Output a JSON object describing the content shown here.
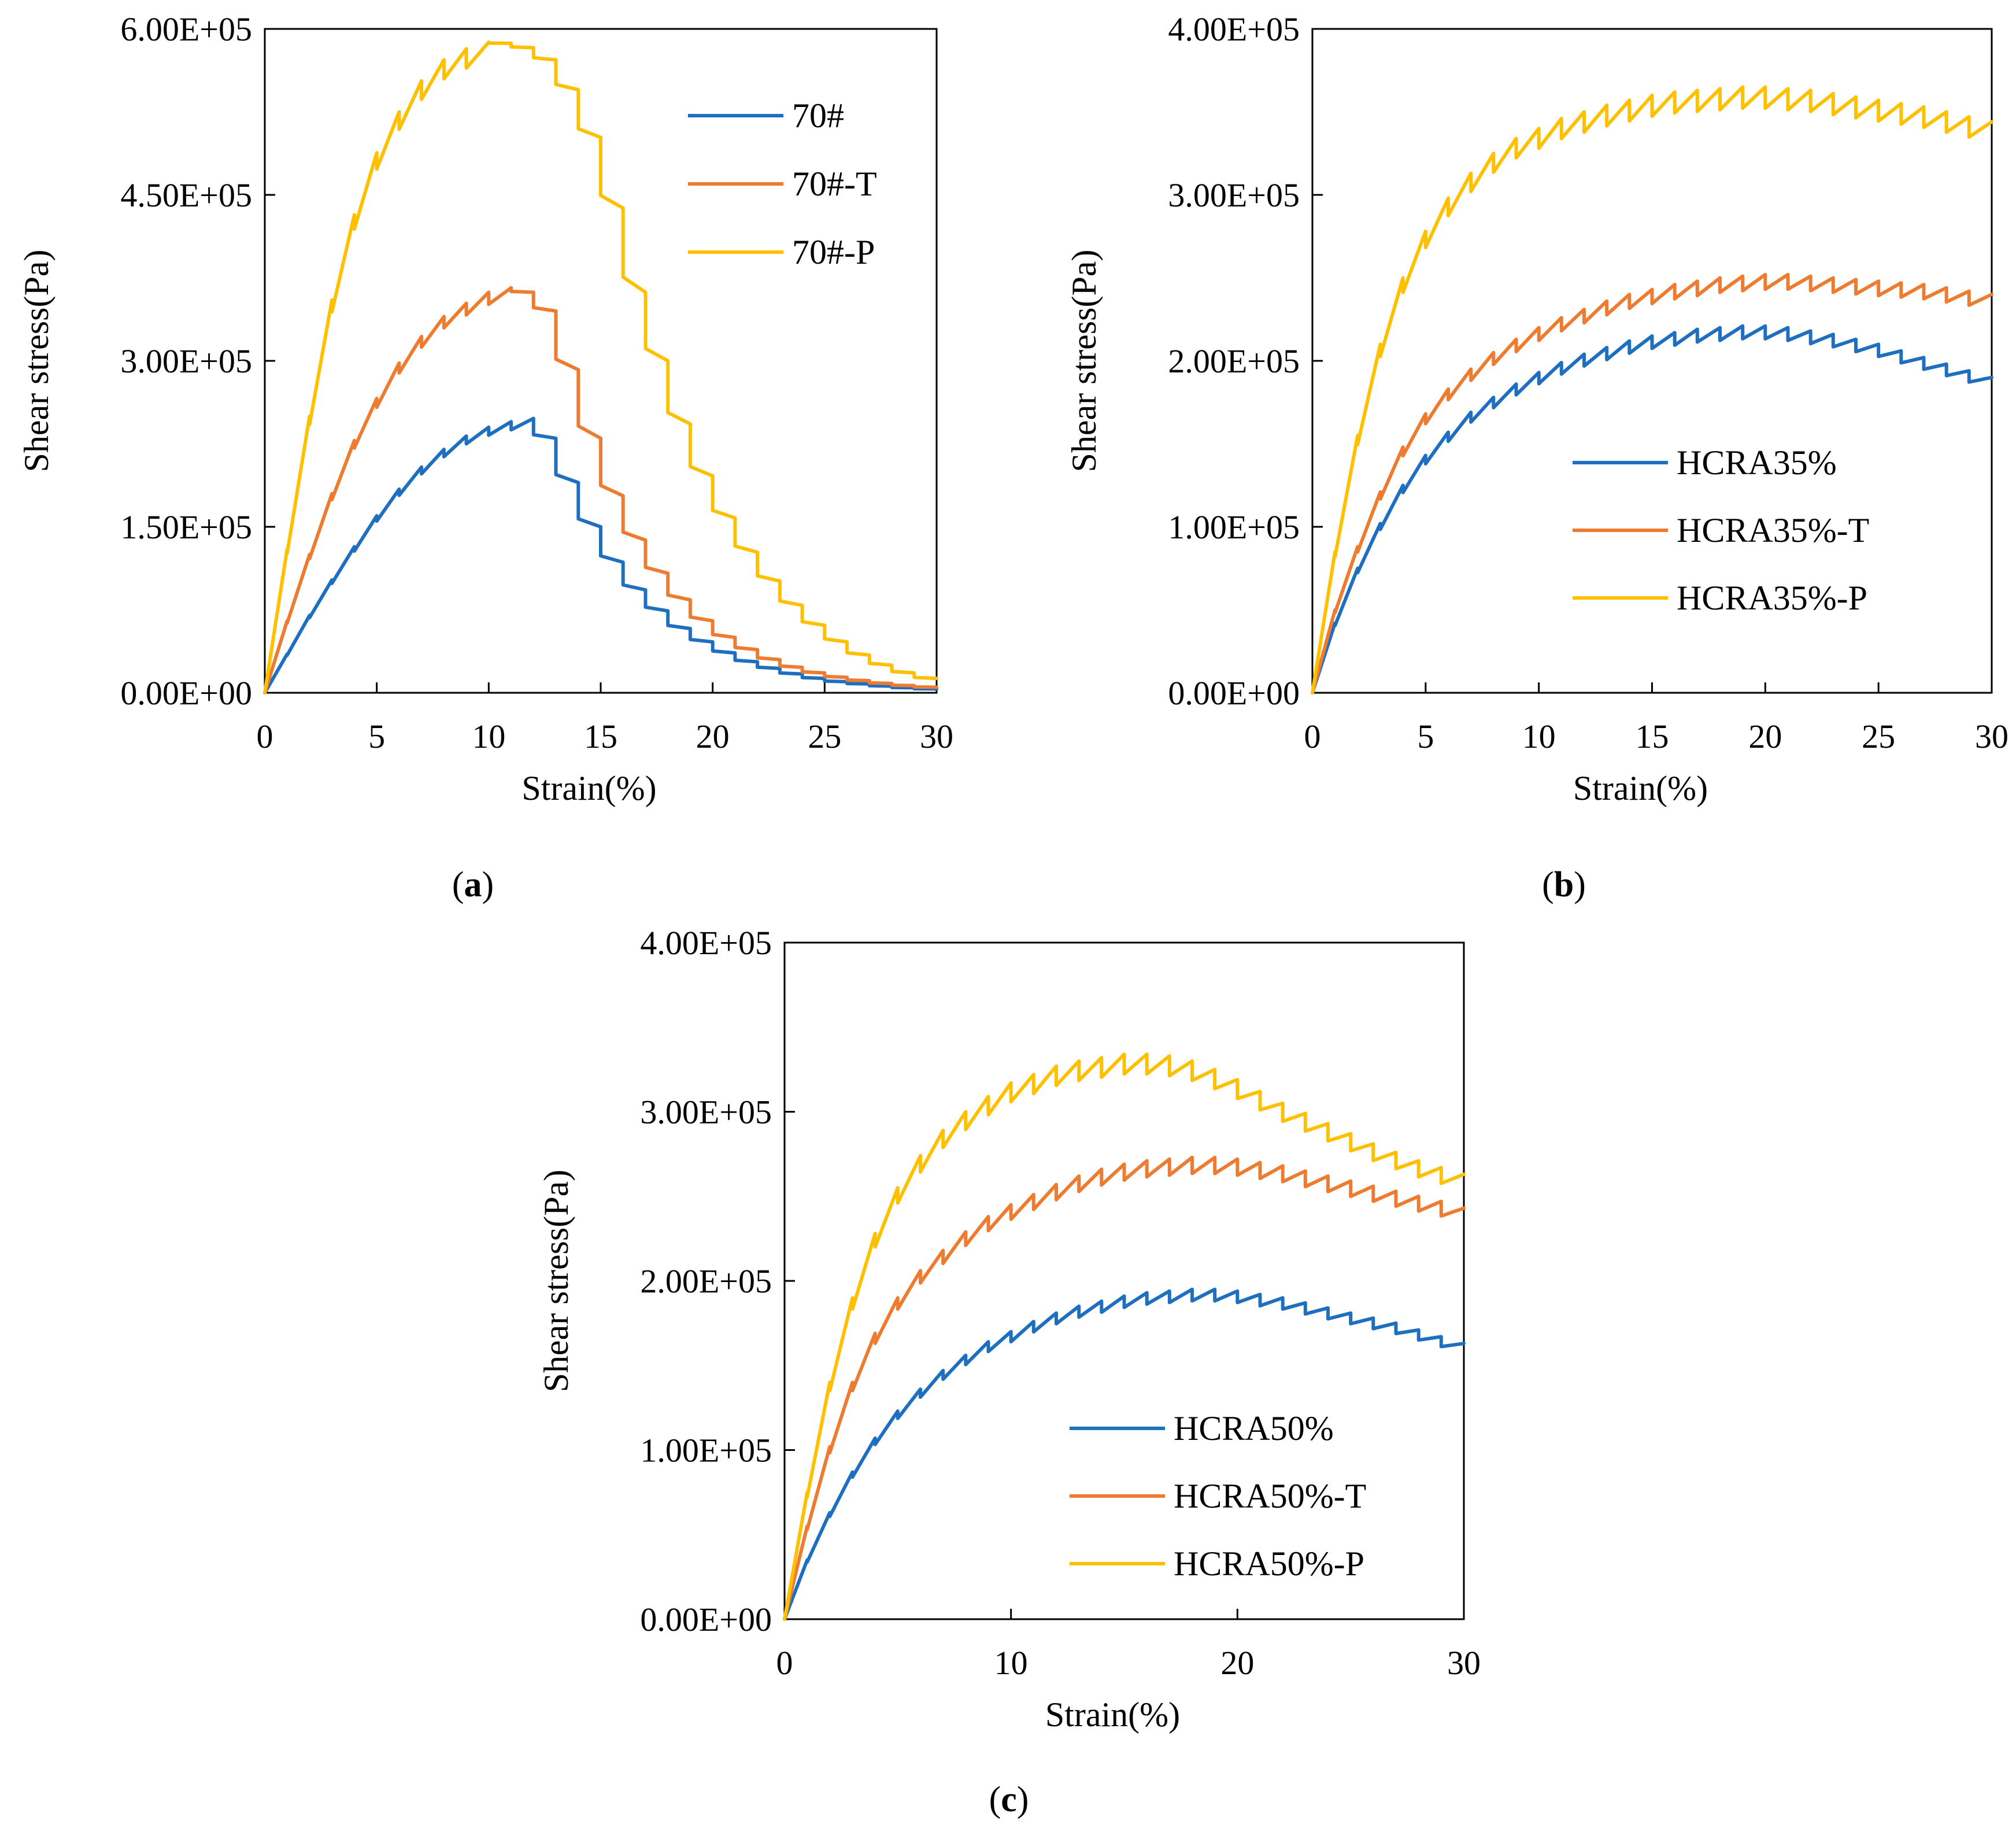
{
  "colors": {
    "blue": "#1F6FC0",
    "orange": "#EE7C30",
    "yellow": "#FFC000",
    "axis": "#000000"
  },
  "chart_data": [
    {
      "id": "a",
      "type": "line",
      "caption": {
        "open": "(",
        "letter": "a",
        "close": ")"
      },
      "xlabel": "Strain(%)",
      "ylabel": "Shear stress(Pa)",
      "xlim": [
        0,
        30
      ],
      "ylim": [
        0,
        600000
      ],
      "xticks": [
        0,
        5,
        10,
        15,
        20,
        25,
        30
      ],
      "xtick_labels": [
        "0",
        "5",
        "10",
        "15",
        "20",
        "25",
        "30"
      ],
      "yticks": [
        0,
        150000,
        300000,
        450000,
        600000
      ],
      "ytick_labels": [
        "0.00E+00",
        "1.50E+05",
        "3.00E+05",
        "4.50E+05",
        "6.00E+05"
      ],
      "legend_position": "top-right",
      "series": [
        {
          "name": "70#",
          "color": "blue",
          "model": "peak",
          "x": [
            0,
            1,
            2,
            3,
            4,
            5,
            6,
            7,
            8,
            9,
            10,
            11,
            12,
            13,
            14,
            15,
            16,
            17,
            18,
            19,
            20,
            21,
            22,
            23,
            24,
            25,
            26,
            27,
            28,
            29,
            30
          ],
          "y": [
            0,
            35000,
            70000,
            102000,
            132000,
            160000,
            184000,
            204000,
            220000,
            232000,
            240000,
            245000,
            248000,
            230000,
            190000,
            150000,
            118000,
            93000,
            74000,
            58000,
            46000,
            36000,
            28000,
            22000,
            17000,
            13000,
            10000,
            8000,
            6000,
            4500,
            3500
          ]
        },
        {
          "name": "70#-T",
          "color": "orange",
          "model": "peak",
          "x": [
            0,
            1,
            2,
            3,
            4,
            5,
            6,
            7,
            8,
            9,
            10,
            11,
            12,
            13,
            14,
            15,
            16,
            17,
            18,
            19,
            20,
            21,
            22,
            23,
            24,
            25,
            26,
            27,
            28,
            29,
            30
          ],
          "y": [
            0,
            65000,
            125000,
            180000,
            228000,
            266000,
            298000,
            322000,
            340000,
            352000,
            362000,
            366000,
            362000,
            345000,
            292000,
            230000,
            178000,
            138000,
            108000,
            84000,
            65000,
            50000,
            39000,
            30000,
            23000,
            18000,
            14000,
            11000,
            8500,
            6500,
            5000
          ]
        },
        {
          "name": "70#-P",
          "color": "yellow",
          "model": "peak",
          "x": [
            0,
            1,
            2,
            3,
            4,
            5,
            6,
            7,
            8,
            9,
            10,
            11,
            12,
            13,
            14,
            15,
            16,
            17,
            18,
            19,
            20,
            21,
            22,
            23,
            24,
            25,
            26,
            27,
            28,
            29,
            30
          ],
          "y": [
            0,
            130000,
            250000,
            355000,
            432000,
            488000,
            525000,
            553000,
            572000,
            582000,
            588000,
            587000,
            583000,
            572000,
            545000,
            502000,
            438000,
            362000,
            300000,
            243000,
            196000,
            158000,
            127000,
            101000,
            79000,
            61000,
            46000,
            34000,
            25000,
            18000,
            13000
          ]
        }
      ]
    },
    {
      "id": "b",
      "type": "line",
      "caption": {
        "open": "(",
        "letter": "b",
        "close": ")"
      },
      "xlabel": "Strain(%)",
      "ylabel": "Shear stress(Pa)",
      "xlim": [
        0,
        30
      ],
      "ylim": [
        0,
        400000
      ],
      "xticks": [
        0,
        5,
        10,
        15,
        20,
        25,
        30
      ],
      "xtick_labels": [
        "0",
        "5",
        "10",
        "15",
        "20",
        "25",
        "30"
      ],
      "yticks": [
        0,
        100000,
        200000,
        300000,
        400000
      ],
      "ytick_labels": [
        "0.00E+00",
        "1.00E+05",
        "2.00E+05",
        "3.00E+05",
        "4.00E+05"
      ],
      "legend_position": "bottom-right",
      "series": [
        {
          "name": "HCRA35%",
          "color": "blue",
          "model": "plateau",
          "x": [
            0,
            1,
            2,
            3,
            4,
            5,
            6,
            7,
            8,
            9,
            10,
            11,
            12,
            13,
            14,
            15,
            16,
            17,
            18,
            19,
            20,
            21,
            22,
            23,
            24,
            25,
            26,
            27,
            28,
            29,
            30
          ],
          "y": [
            0,
            42000,
            75000,
            102000,
            125000,
            143000,
            157000,
            169000,
            178000,
            186000,
            193000,
            199000,
            204000,
            208000,
            212000,
            215000,
            217000,
            219000,
            220000,
            221000,
            221000,
            220000,
            218000,
            216000,
            213000,
            210000,
            206000,
            202000,
            198000,
            194000,
            190000
          ]
        },
        {
          "name": "HCRA35%-T",
          "color": "orange",
          "model": "plateau",
          "x": [
            0,
            1,
            2,
            3,
            4,
            5,
            6,
            7,
            8,
            9,
            10,
            11,
            12,
            13,
            14,
            15,
            16,
            17,
            18,
            19,
            20,
            21,
            22,
            23,
            24,
            25,
            26,
            27,
            28,
            29,
            30
          ],
          "y": [
            0,
            50000,
            88000,
            121000,
            148000,
            168000,
            183000,
            195000,
            205000,
            213000,
            220000,
            226000,
            231000,
            236000,
            240000,
            243000,
            246000,
            248000,
            250000,
            251000,
            252000,
            252000,
            251000,
            250000,
            249000,
            248000,
            247000,
            246000,
            244000,
            242000,
            240000
          ]
        },
        {
          "name": "HCRA35%-P",
          "color": "yellow",
          "model": "plateau",
          "x": [
            0,
            1,
            2,
            3,
            4,
            5,
            6,
            7,
            8,
            9,
            10,
            11,
            12,
            13,
            14,
            15,
            16,
            17,
            18,
            19,
            20,
            21,
            22,
            23,
            24,
            25,
            26,
            27,
            28,
            29,
            30
          ],
          "y": [
            0,
            85000,
            155000,
            210000,
            250000,
            278000,
            298000,
            313000,
            325000,
            334000,
            340000,
            346000,
            350000,
            354000,
            357000,
            360000,
            362000,
            363000,
            364000,
            365000,
            365000,
            364000,
            363000,
            361000,
            359000,
            357000,
            355000,
            353000,
            350000,
            347000,
            344000
          ]
        }
      ]
    },
    {
      "id": "c",
      "type": "line",
      "caption": {
        "open": "(",
        "letter": "c",
        "close": ")"
      },
      "xlabel": "Strain(%)",
      "ylabel": "Shear stress(Pa)",
      "xlim": [
        0,
        30
      ],
      "ylim": [
        0,
        400000
      ],
      "xticks": [
        0,
        10,
        20,
        30
      ],
      "xtick_labels": [
        "0",
        "10",
        "20",
        "30"
      ],
      "yticks": [
        0,
        100000,
        200000,
        300000,
        400000
      ],
      "ytick_labels": [
        "0.00E+00",
        "1.00E+05",
        "2.00E+05",
        "3.00E+05",
        "4.00E+05"
      ],
      "legend_position": "bottom-right",
      "series": [
        {
          "name": "HCRA50%",
          "color": "blue",
          "model": "plateau",
          "x": [
            0,
            1,
            2,
            3,
            4,
            5,
            6,
            7,
            8,
            9,
            10,
            11,
            12,
            13,
            14,
            15,
            16,
            17,
            18,
            19,
            20,
            21,
            22,
            23,
            24,
            25,
            26,
            27,
            28,
            29,
            30
          ],
          "y": [
            0,
            35000,
            63000,
            87000,
            107000,
            123000,
            136000,
            147000,
            156000,
            164000,
            170000,
            176000,
            181000,
            185000,
            188000,
            191000,
            193000,
            194000,
            195000,
            195000,
            194000,
            192000,
            190000,
            187000,
            184000,
            181000,
            178000,
            175000,
            171000,
            167000,
            163000
          ]
        },
        {
          "name": "HCRA50%-T",
          "color": "orange",
          "model": "plateau",
          "x": [
            0,
            1,
            2,
            3,
            4,
            5,
            6,
            7,
            8,
            9,
            10,
            11,
            12,
            13,
            14,
            15,
            16,
            17,
            18,
            19,
            20,
            21,
            22,
            23,
            24,
            25,
            26,
            27,
            28,
            29,
            30
          ],
          "y": [
            0,
            55000,
            102000,
            140000,
            169000,
            190000,
            206000,
            218000,
            229000,
            238000,
            245000,
            251000,
            257000,
            262000,
            266000,
            269000,
            271000,
            272000,
            273000,
            273000,
            272000,
            270000,
            268000,
            265000,
            262000,
            259000,
            256000,
            253000,
            250000,
            247000,
            243000
          ]
        },
        {
          "name": "HCRA50%-P",
          "color": "yellow",
          "model": "plateau",
          "x": [
            0,
            1,
            2,
            3,
            4,
            5,
            6,
            7,
            8,
            9,
            10,
            11,
            12,
            13,
            14,
            15,
            16,
            17,
            18,
            19,
            20,
            21,
            22,
            23,
            24,
            25,
            26,
            27,
            28,
            29,
            30
          ],
          "y": [
            0,
            75000,
            140000,
            190000,
            228000,
            255000,
            274000,
            289000,
            300000,
            309000,
            317000,
            322000,
            327000,
            330000,
            332000,
            334000,
            334000,
            333000,
            330000,
            325000,
            319000,
            312000,
            305000,
            299000,
            293000,
            287000,
            281000,
            276000,
            271000,
            267000,
            263000
          ]
        }
      ]
    }
  ]
}
